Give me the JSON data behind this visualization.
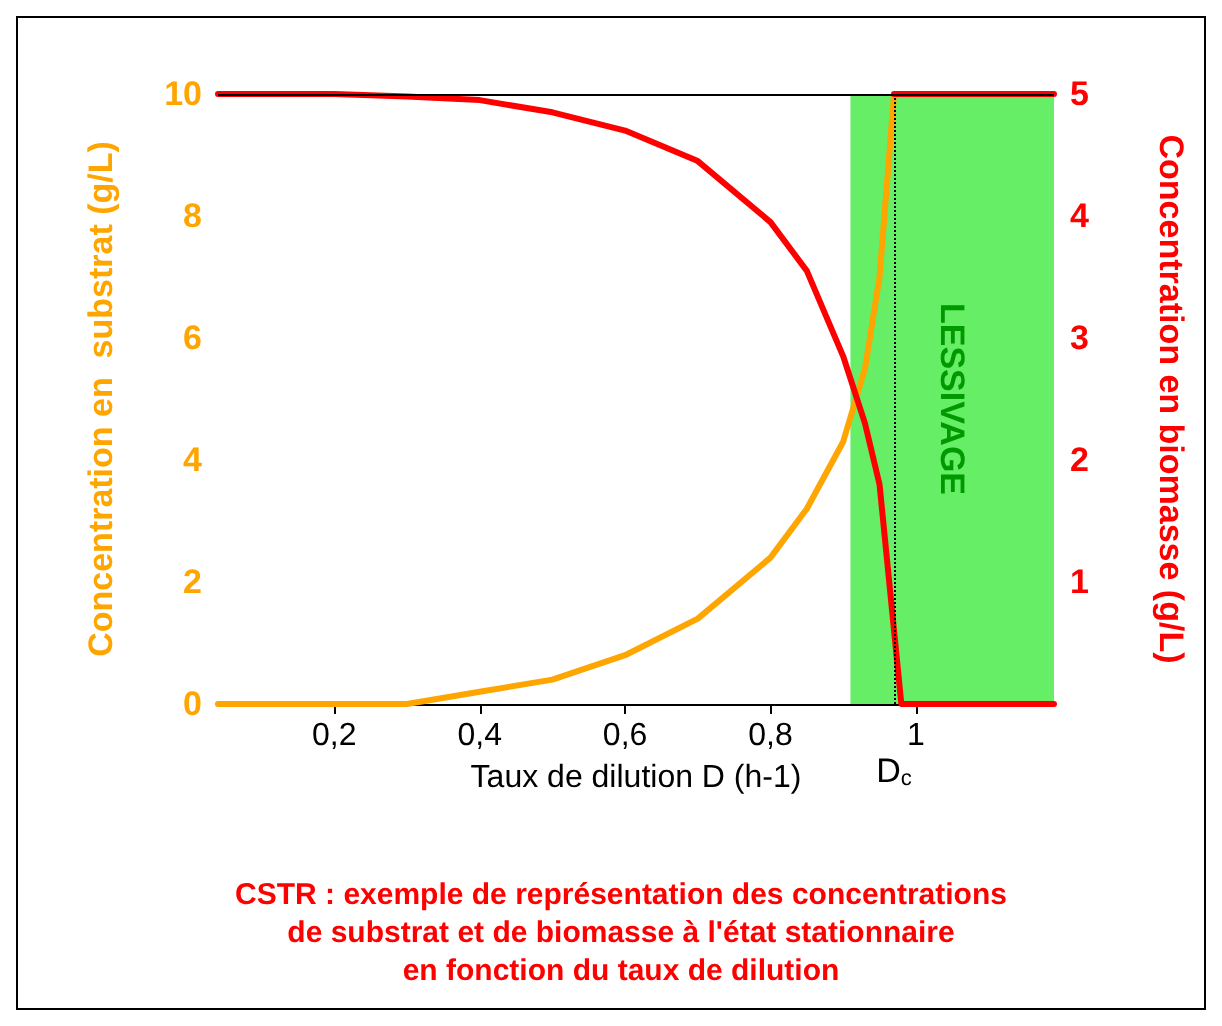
{
  "chart_data": {
    "type": "line",
    "title": "CSTR : exemple de représentation des concentrations\nde substrat et de biomasse à l'état stationnaire\nen fonction du taux de dilution",
    "xlabel": "Taux de dilution D (h-1)",
    "ylabel": "Concentration en  substrat (g/L)",
    "y2label": "Concentration en biomasse (g/L)",
    "xlim": [
      0.04,
      1.19
    ],
    "xticks": [
      {
        "value": 0.2,
        "label": "0,2"
      },
      {
        "value": 0.4,
        "label": "0,4"
      },
      {
        "value": 0.6,
        "label": "0,6"
      },
      {
        "value": 0.8,
        "label": "0,8"
      },
      {
        "value": 1,
        "label": "1"
      }
    ],
    "ylim": [
      0,
      10
    ],
    "yticks": [
      0,
      2,
      4,
      6,
      8,
      10
    ],
    "y2lim": [
      0,
      5
    ],
    "y2ticks": [
      1,
      2,
      3,
      4,
      5
    ],
    "series": [
      {
        "color": "#ffa500",
        "x": [
          0.04,
          0.2,
          0.3,
          0.4,
          0.5,
          0.6,
          0.7,
          0.8,
          0.85,
          0.9,
          0.93,
          0.95,
          0.97
        ],
        "values": [
          0,
          0,
          0,
          0.2,
          0.4,
          0.8,
          1.4,
          2.4,
          3.2,
          4.3,
          5.5,
          7,
          10
        ]
      },
      {
        "color": "#ff0000",
        "axis": "y2",
        "x": [
          0.04,
          0.2,
          0.3,
          0.4,
          0.5,
          0.6,
          0.7,
          0.8,
          0.85,
          0.9,
          0.93,
          0.95,
          0.97,
          0.98,
          1.19
        ],
        "values": [
          5,
          5,
          4.98,
          4.95,
          4.85,
          4.7,
          4.45,
          3.95,
          3.55,
          2.85,
          2.3,
          1.8,
          0.6,
          0,
          0
        ]
      },
      {
        "color": "#ff0000",
        "x": [
          0.97,
          1.19
        ],
        "values": [
          10,
          10
        ]
      }
    ],
    "ref_lines": [
      {
        "axis": "y",
        "value": 10,
        "color": "#000000"
      },
      {
        "axis": "x",
        "value": 0.97,
        "label": "D$_{c}$",
        "color": "#000000",
        "line_style": "dotted"
      }
    ],
    "bands": [
      {
        "axis": "x",
        "from": 0.91,
        "to": 1.19,
        "label": "LESSIVAGE",
        "color": "#66ee66"
      }
    ],
    "grid": false,
    "marker": "none",
    "line_style": "solid"
  }
}
